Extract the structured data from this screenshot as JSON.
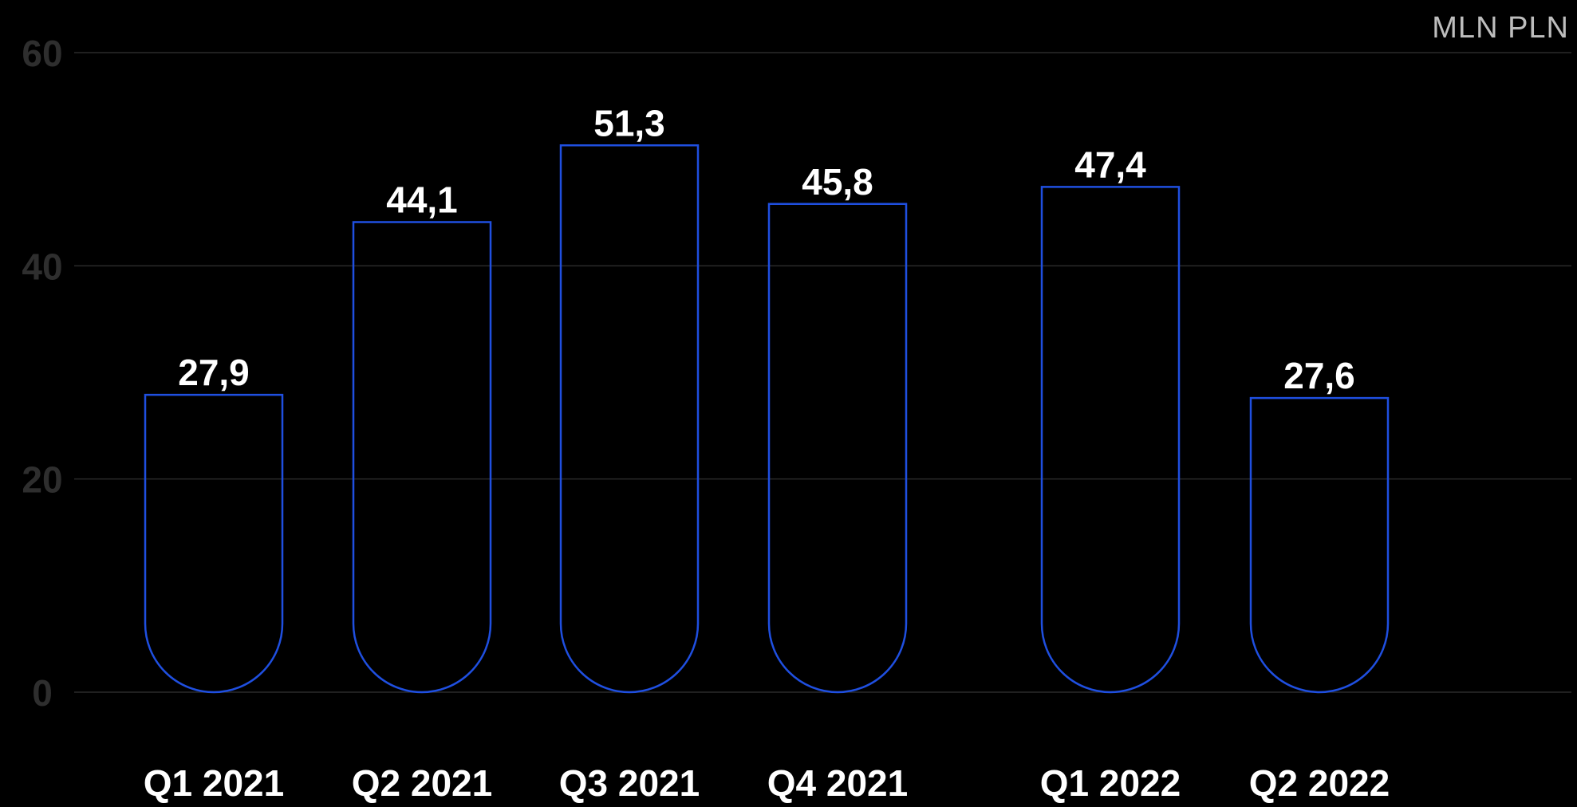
{
  "chart_data": {
    "type": "bar",
    "unit": "MLN PLN",
    "categories": [
      "Q1 2021",
      "Q2 2021",
      "Q3 2021",
      "Q4 2021",
      "Q1 2022",
      "Q2 2022"
    ],
    "values": [
      27.9,
      44.1,
      51.3,
      45.8,
      47.4,
      27.6
    ],
    "value_labels": [
      "27,9",
      "44,1",
      "51,3",
      "45,8",
      "47,4",
      "27,6"
    ],
    "yticks": [
      0,
      20,
      40,
      60
    ],
    "ylim": [
      0,
      60
    ],
    "grid": true,
    "colors": {
      "bar_outline": "#1f4fe0",
      "background": "#000000",
      "gridline": "#2a2a2a",
      "ytick_text": "#2e2e2e",
      "category_text": "#ffffff",
      "value_text": "#ffffff",
      "unit_text": "#bdbdbd"
    }
  }
}
